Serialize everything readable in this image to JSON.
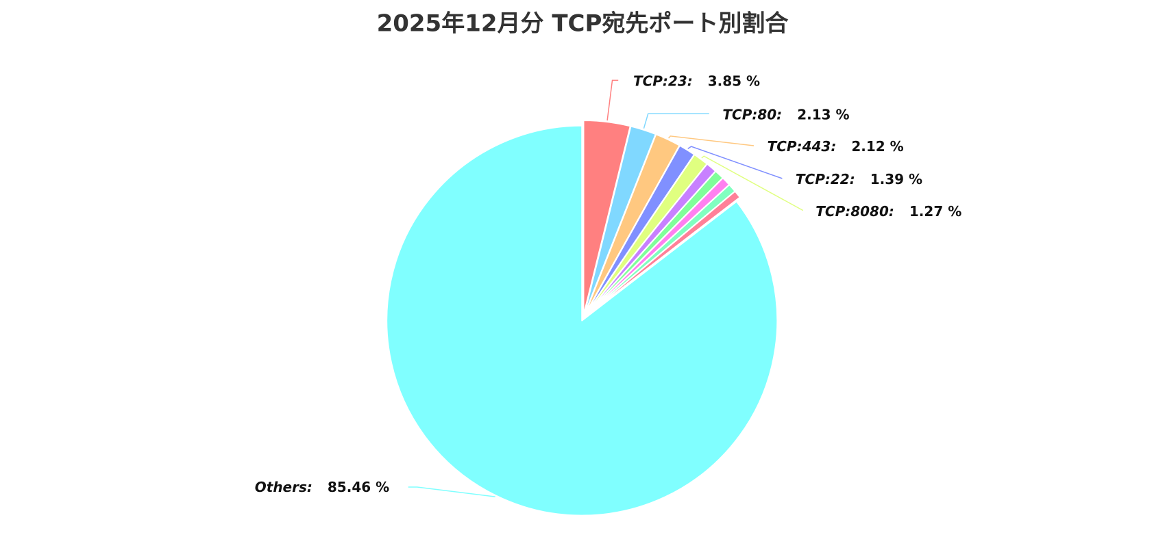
{
  "chart_data": {
    "type": "pie",
    "title": "2025年12月分 TCP宛先ポート別割合",
    "categories": [
      "TCP:23:",
      "TCP:80:",
      "TCP:443:",
      "TCP:22:",
      "TCP:8080:",
      null,
      null,
      null,
      null,
      null,
      "Others:"
    ],
    "values": [
      3.85,
      2.13,
      2.12,
      1.39,
      1.27,
      0.9,
      0.8,
      0.75,
      0.7,
      0.63,
      85.46
    ],
    "value_labels": [
      "3.85 %",
      "2.13 %",
      "2.12 %",
      "1.39 %",
      "1.27 %",
      null,
      null,
      null,
      null,
      null,
      "85.46 %"
    ],
    "colors": [
      "#ff8080",
      "#80d8ff",
      "#ffc880",
      "#8090ff",
      "#e0ff80",
      "#c880ff",
      "#80ff9a",
      "#ff80f0",
      "#80ffc0",
      "#ff8098",
      "#80ffff"
    ]
  }
}
